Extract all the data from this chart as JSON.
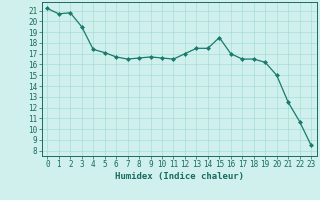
{
  "x": [
    0,
    1,
    2,
    3,
    4,
    5,
    6,
    7,
    8,
    9,
    10,
    11,
    12,
    13,
    14,
    15,
    16,
    17,
    18,
    19,
    20,
    21,
    22,
    23
  ],
  "y": [
    21.2,
    20.7,
    20.8,
    19.5,
    17.4,
    17.1,
    16.7,
    16.5,
    16.6,
    16.7,
    16.6,
    16.5,
    17.0,
    17.5,
    17.5,
    18.5,
    17.0,
    16.5,
    16.5,
    16.2,
    15.0,
    12.5,
    10.7,
    8.5
  ],
  "line_color": "#1a7a6e",
  "marker": "D",
  "marker_size": 2.0,
  "bg_color": "#cff0ec",
  "grid_color": "#9fd8d0",
  "ylabel_ticks": [
    8,
    9,
    10,
    11,
    12,
    13,
    14,
    15,
    16,
    17,
    18,
    19,
    20,
    21
  ],
  "ylim": [
    7.5,
    21.8
  ],
  "xlim": [
    -0.5,
    23.5
  ],
  "xlabel": "Humidex (Indice chaleur)",
  "tick_color": "#1a6b60",
  "axis_color": "#1a6b60",
  "tick_fontsize": 5.5,
  "xlabel_fontsize": 6.5,
  "linewidth": 0.9
}
